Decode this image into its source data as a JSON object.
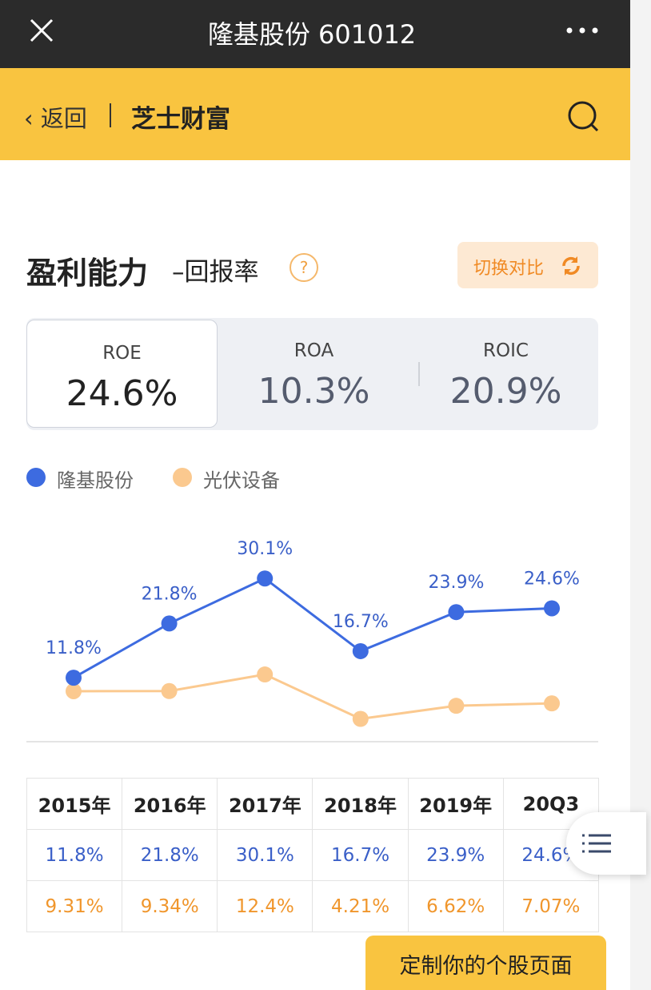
{
  "top_bar": {
    "title": "隆基股份 601012"
  },
  "nav_bar": {
    "back": "返回",
    "brand": "芝士财富"
  },
  "section": {
    "title": "盈利能力",
    "subtitle": "–回报率",
    "help": "?",
    "switch_button": "切换对比"
  },
  "metric_tabs": [
    {
      "label": "ROE",
      "value": "24.6%"
    },
    {
      "label": "ROA",
      "value": "10.3%"
    },
    {
      "label": "ROIC",
      "value": "20.9%"
    }
  ],
  "chart_data": {
    "type": "line",
    "categories": [
      "2015年",
      "2016年",
      "2017年",
      "2018年",
      "2019年",
      "20Q3"
    ],
    "series": [
      {
        "name": "隆基股份",
        "color": "#3d6be0",
        "values": [
          11.8,
          21.8,
          30.1,
          16.7,
          23.9,
          24.6
        ],
        "value_labels": [
          "11.8%",
          "21.8%",
          "30.1%",
          "16.7%",
          "23.9%",
          "24.6%"
        ]
      },
      {
        "name": "光伏设备",
        "color": "#fbc98f",
        "values": [
          9.31,
          9.34,
          12.4,
          4.21,
          6.62,
          7.07
        ],
        "value_labels": [
          "9.31%",
          "9.34%",
          "12.4%",
          "4.21%",
          "6.62%",
          "7.07%"
        ]
      }
    ]
  },
  "footer_button": "定制你的个股页面"
}
